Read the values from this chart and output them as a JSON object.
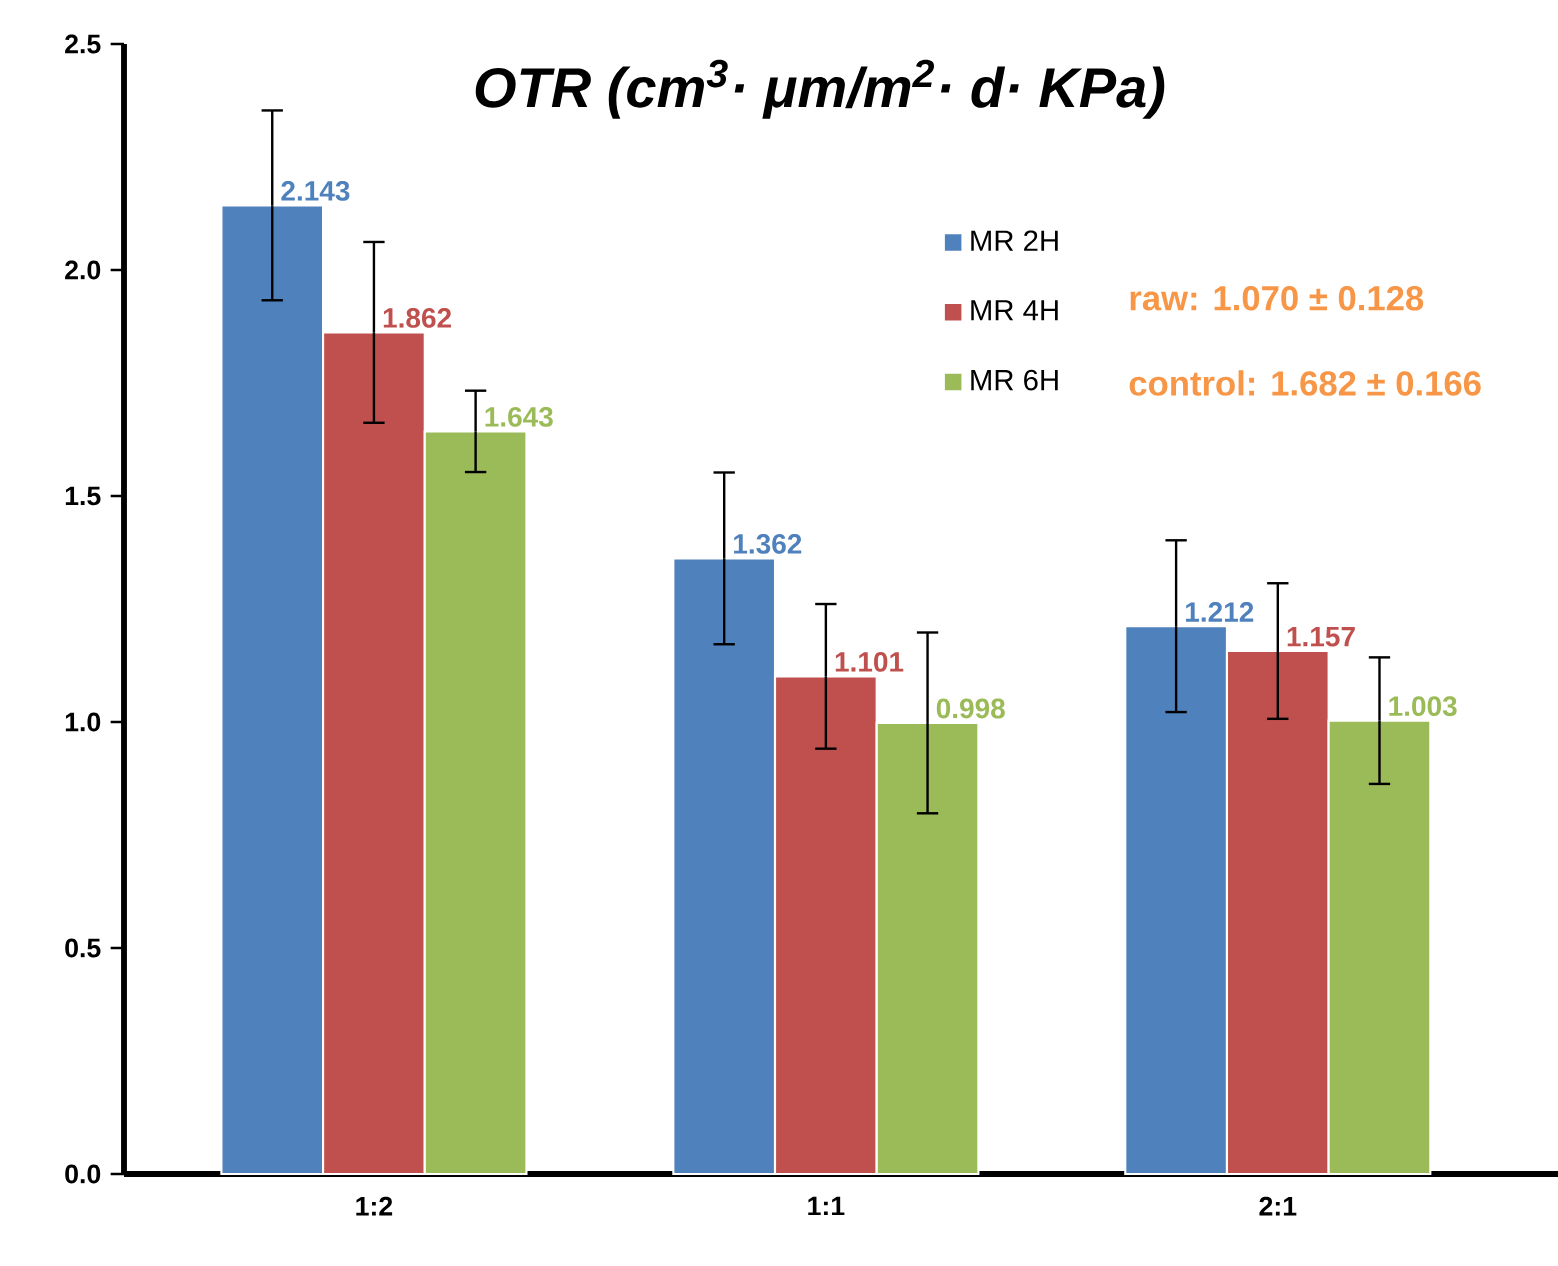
{
  "chart_data": {
    "type": "bar",
    "title": "OTR (cm$^{3}$· μm/m$^{2}$· d· KPa)",
    "categories": [
      "1:2",
      "1:1",
      "2:1"
    ],
    "series": [
      {
        "name": "MR 2H",
        "color": "#4f81bd",
        "values": [
          2.143,
          1.362,
          1.212
        ],
        "errors": [
          0.21,
          0.19,
          0.19
        ]
      },
      {
        "name": "MR 4H",
        "color": "#c0504d",
        "values": [
          1.862,
          1.101,
          1.157
        ],
        "errors": [
          0.2,
          0.16,
          0.15
        ]
      },
      {
        "name": "MR 6H",
        "color": "#9bbb59",
        "values": [
          1.643,
          0.998,
          1.003
        ],
        "errors": [
          0.09,
          0.2,
          0.14
        ]
      }
    ],
    "ylim": [
      0,
      2.5
    ],
    "yticks": [
      {
        "value": 0,
        "label": "0.0"
      },
      {
        "value": 0.5,
        "label": "0.5"
      },
      {
        "value": 1,
        "label": "1.0"
      },
      {
        "value": 1.5,
        "label": "1.5"
      },
      {
        "value": 2,
        "label": "2.0"
      },
      {
        "value": 2.5,
        "label": "2.5"
      }
    ],
    "data_labels": true,
    "legend": "top right",
    "grid": false,
    "annotations": [
      "raw: 1.070 ± 0.128",
      "control: 1.682 ± 0.166"
    ]
  }
}
